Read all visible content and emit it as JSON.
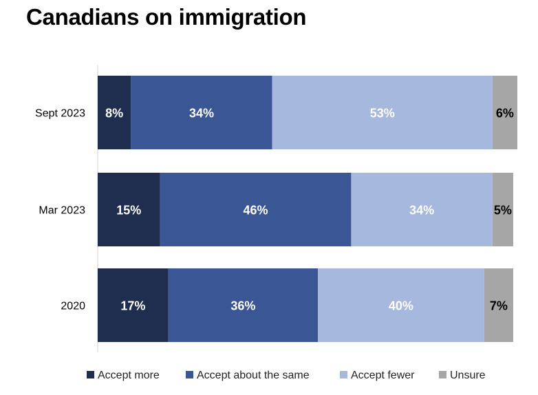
{
  "title": "Canadians on immigration",
  "chart_data": {
    "type": "bar",
    "orientation": "horizontal",
    "stacked": true,
    "categories": [
      "Sept 2023",
      "Mar 2023",
      "2020"
    ],
    "series": [
      {
        "name": "Accept more",
        "values": [
          8,
          15,
          17
        ],
        "color": "#1f2d4f",
        "label_color": "#ffffff"
      },
      {
        "name": "Accept about the same",
        "values": [
          34,
          46,
          36
        ],
        "color": "#3a5694",
        "label_color": "#ffffff"
      },
      {
        "name": "Accept fewer",
        "values": [
          53,
          34,
          40
        ],
        "color": "#a6b8dd",
        "label_color": "#ffffff"
      },
      {
        "name": "Unsure",
        "values": [
          6,
          5,
          7
        ],
        "color": "#a6a6a6",
        "label_color": "#000000"
      }
    ],
    "value_suffix": "%",
    "xlim": [
      0,
      101
    ],
    "grid": false,
    "legend_position": "bottom"
  }
}
